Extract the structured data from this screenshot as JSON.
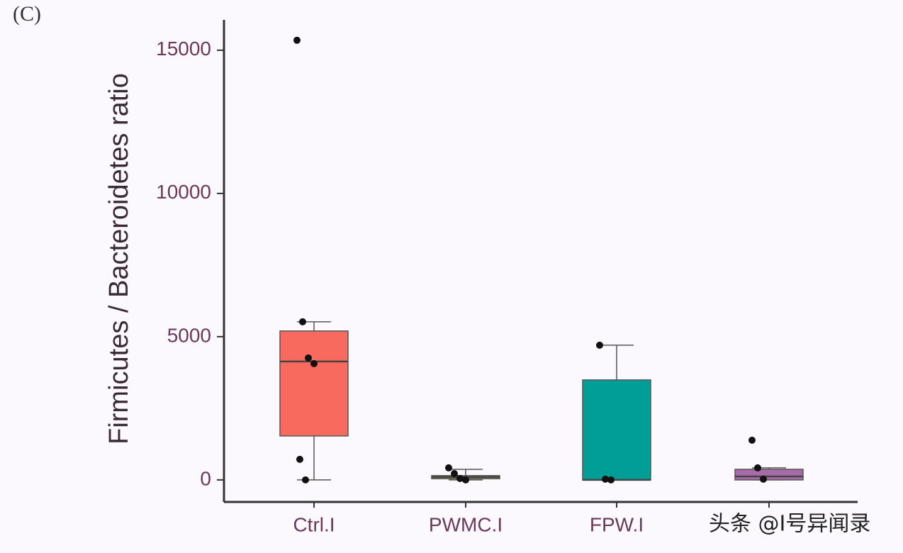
{
  "chart_data": {
    "type": "box",
    "panel_label": "(C)",
    "y_label": "Firmicutes / Bacteroidetes ratio",
    "categories": [
      "Ctrl.I",
      "PWMC.I",
      "FPW.I",
      null
    ],
    "colors": [
      "#f96a5e",
      "#a59f3a",
      "#009e96",
      "#a86aa8"
    ],
    "boxes": [
      {
        "min": 0,
        "q1": 1535,
        "median": 4134,
        "q3": 5198,
        "max": 5520,
        "points": [
          15347,
          5520,
          4257,
          4059,
          718,
          0
        ]
      },
      {
        "min": 0,
        "q1": 40,
        "median": 100,
        "q3": 150,
        "max": 370,
        "points": [
          420,
          220,
          50,
          0
        ]
      },
      {
        "min": 0,
        "q1": 0,
        "median": 0,
        "q3": 3490,
        "max": 4703,
        "points": [
          4703,
          25,
          0
        ]
      },
      {
        "min": 0,
        "q1": 0,
        "median": 120,
        "q3": 370,
        "max": 420,
        "points": [
          1386,
          420,
          25
        ]
      }
    ],
    "ylim": [
      -770,
      16060
    ],
    "yticks": [
      0,
      5000,
      10000,
      15000
    ],
    "grid": false,
    "watermark": "头条 @I号异闻录"
  }
}
